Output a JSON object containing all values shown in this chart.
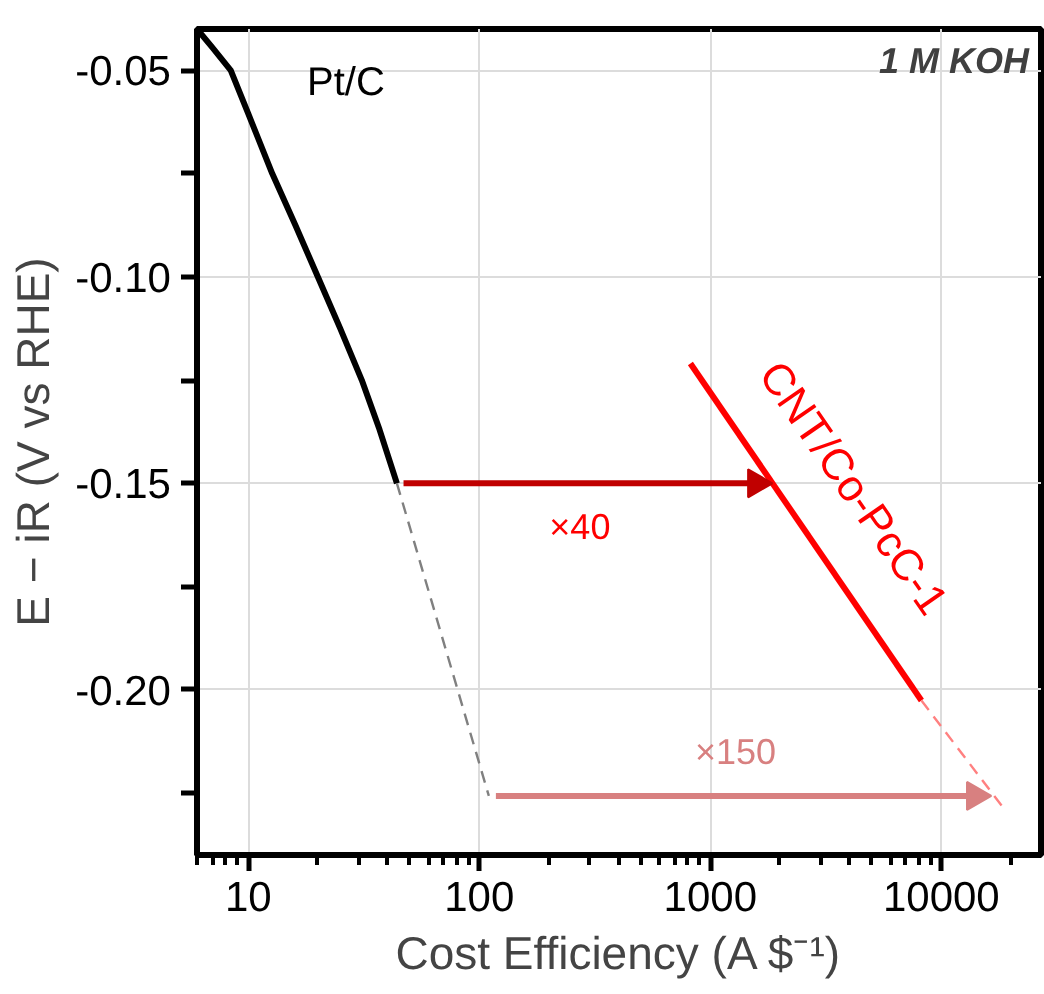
{
  "chart_data": {
    "type": "line",
    "xlabel": "Cost Efficiency (A $⁻¹)",
    "ylabel": "E − iR (V vs RHE)",
    "log": "x",
    "xlim": [
      6,
      27000
    ],
    "ylim": [
      -0.24,
      -0.04
    ],
    "xticks": [
      10,
      100,
      1000,
      10000
    ],
    "yticks": [
      {
        "value": -0.05,
        "label": "-0.05"
      },
      {
        "value": -0.075,
        "label": null
      },
      {
        "value": -0.1,
        "label": "-0.10"
      },
      {
        "value": -0.125,
        "label": null
      },
      {
        "value": -0.15,
        "label": "-0.15"
      },
      {
        "value": -0.175,
        "label": null
      },
      {
        "value": -0.2,
        "label": "-0.20"
      },
      {
        "value": -0.225,
        "label": null
      }
    ],
    "grid": true,
    "series": [
      {
        "name": "Pt/C",
        "color": "#000000",
        "x": [
          6,
          7,
          8.4,
          10,
          12.7,
          16,
          20,
          25,
          31,
          37,
          44
        ],
        "values": [
          -0.04,
          -0.0445,
          -0.05,
          -0.0605,
          -0.075,
          -0.0875,
          -0.1,
          -0.1125,
          -0.125,
          -0.137,
          -0.15
        ]
      },
      {
        "color": "#808080",
        "line_style": "dashed",
        "x": [
          44,
          110
        ],
        "values": [
          -0.15,
          -0.2257
        ]
      },
      {
        "name": "CNT/Co-PcC-1",
        "color": "#ff0000",
        "x": [
          820,
          8200
        ],
        "values": [
          -0.121,
          -0.2026
        ]
      },
      {
        "color": "#ff8080",
        "line_style": "dashed",
        "x": [
          8200,
          18800
        ],
        "values": [
          -0.2026,
          -0.229
        ]
      },
      {
        "color": "#c00000",
        "marker": "triangle",
        "x": [
          47,
          1580
        ],
        "values": [
          -0.15,
          -0.15
        ]
      },
      {
        "color": "#d88080",
        "marker": "triangle",
        "x": [
          118,
          14000
        ],
        "values": [
          -0.2257,
          -0.2257
        ]
      }
    ],
    "annotations": [
      "1 M KOH",
      "×40",
      "×150"
    ]
  }
}
